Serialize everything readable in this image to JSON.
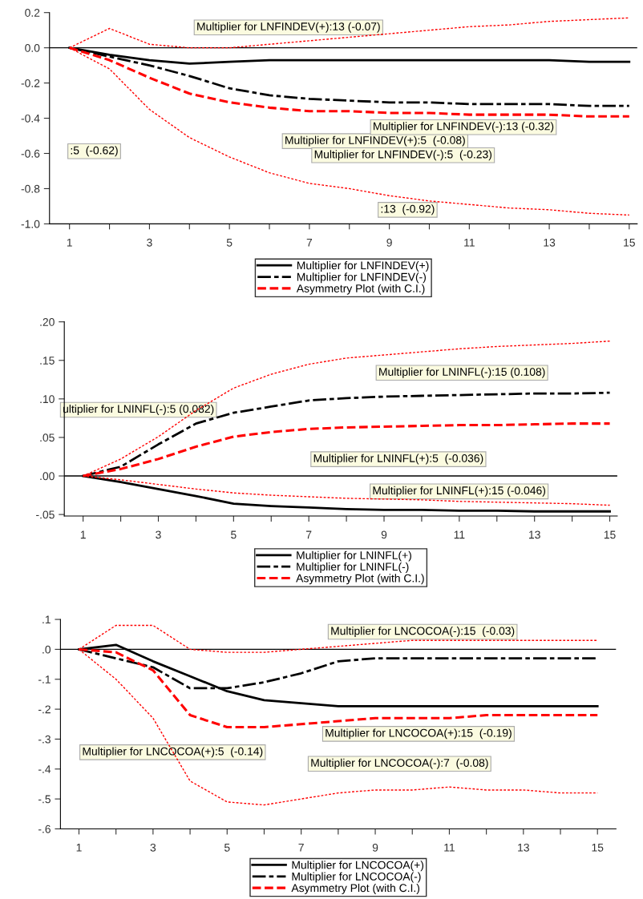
{
  "chart_data": [
    {
      "type": "line",
      "x": [
        1,
        2,
        3,
        4,
        5,
        6,
        7,
        8,
        9,
        10,
        11,
        12,
        13,
        14,
        15
      ],
      "xlim": [
        0.5,
        15.2
      ],
      "xticks": [
        1,
        {
          "value": 2,
          "label": null
        },
        3,
        {
          "value": 4,
          "label": null
        },
        5,
        {
          "value": 6,
          "label": null
        },
        7,
        {
          "value": 8,
          "label": null
        },
        9,
        {
          "value": 10,
          "label": null
        },
        11,
        {
          "value": 12,
          "label": null
        },
        13,
        {
          "value": 14,
          "label": null
        },
        15
      ],
      "ylim": [
        -1.0,
        0.2
      ],
      "yticks": [
        {
          "value": -1.0,
          "label": "-1.0"
        },
        {
          "value": -0.8,
          "label": "-0.8"
        },
        {
          "value": -0.6,
          "label": "-0.6"
        },
        {
          "value": -0.4,
          "label": "-0.4"
        },
        {
          "value": -0.2,
          "label": "-0.2"
        },
        {
          "value": 0.0,
          "label": "0.0"
        },
        {
          "value": 0.2,
          "label": "0.2"
        }
      ],
      "grid": false,
      "legend": "bottom",
      "ref_lines": [
        {
          "axis": "y",
          "value": 0,
          "color": "#000000",
          "line_style": "solid"
        }
      ],
      "series": [
        {
          "name": "Multiplier for LNFINDEV(+)",
          "color": "#000000",
          "line_style": "solid",
          "values": [
            0,
            -0.04,
            -0.07,
            -0.09,
            -0.08,
            -0.07,
            -0.07,
            -0.07,
            -0.07,
            -0.07,
            -0.07,
            -0.07,
            -0.07,
            -0.08,
            -0.08
          ]
        },
        {
          "name": "Multiplier for LNFINDEV(-)",
          "color": "#000000",
          "line_style": "dashed",
          "values": [
            0,
            -0.05,
            -0.1,
            -0.16,
            -0.23,
            -0.27,
            -0.29,
            -0.3,
            -0.31,
            -0.31,
            -0.32,
            -0.32,
            -0.32,
            -0.33,
            -0.33
          ]
        },
        {
          "name": "Asymmetry Plot (with C.I.)",
          "color": "#ff0000",
          "line_style": "dashed",
          "values": [
            0,
            -0.07,
            -0.17,
            -0.26,
            -0.31,
            -0.34,
            -0.36,
            -0.36,
            -0.37,
            -0.37,
            -0.38,
            -0.38,
            -0.38,
            -0.39,
            -0.39
          ]
        },
        {
          "color": "#ff0000",
          "line_style": "dotted",
          "values": [
            0,
            0.11,
            0.02,
            0.0,
            0.0,
            0.02,
            0.04,
            0.06,
            0.08,
            0.1,
            0.12,
            0.13,
            0.15,
            0.16,
            0.17
          ]
        },
        {
          "color": "#ff0000",
          "line_style": "dotted",
          "values": [
            0,
            -0.12,
            -0.35,
            -0.51,
            -0.62,
            -0.71,
            -0.77,
            -0.8,
            -0.84,
            -0.87,
            -0.89,
            -0.91,
            -0.92,
            -0.94,
            -0.95
          ]
        }
      ],
      "annotations": [
        "Multiplier for LNFINDEV(+):13 (-0.07)",
        "Multiplier for LNFINDEV(+):5  (-0.08)",
        "Multiplier for LNFINDEV(-):5  (-0.23)",
        "Multiplier for LNFINDEV(-):13 (-0.32)",
        ":5  (-0.62)",
        ":13  (-0.92)"
      ]
    },
    {
      "type": "line",
      "x": [
        1,
        2,
        3,
        4,
        5,
        6,
        7,
        8,
        9,
        10,
        11,
        12,
        13,
        14,
        15
      ],
      "xlim": [
        0.5,
        15.2
      ],
      "xticks": [
        1,
        {
          "value": 2,
          "label": null
        },
        3,
        {
          "value": 4,
          "label": null
        },
        5,
        {
          "value": 6,
          "label": null
        },
        7,
        {
          "value": 8,
          "label": null
        },
        9,
        {
          "value": 10,
          "label": null
        },
        11,
        {
          "value": 12,
          "label": null
        },
        13,
        {
          "value": 14,
          "label": null
        },
        15
      ],
      "ylim": [
        -0.052,
        0.2
      ],
      "yticks": [
        {
          "value": -0.05,
          "label": "-.05"
        },
        {
          "value": 0.0,
          "label": ".00"
        },
        {
          "value": 0.05,
          "label": ".05"
        },
        {
          "value": 0.1,
          "label": ".10"
        },
        {
          "value": 0.15,
          "label": ".15"
        },
        {
          "value": 0.2,
          "label": ".20"
        }
      ],
      "grid": false,
      "legend": "bottom",
      "ref_lines": [
        {
          "axis": "y",
          "value": 0,
          "color": "#000000",
          "line_style": "solid"
        }
      ],
      "series": [
        {
          "name": "Multiplier for LNINFL(+)",
          "color": "#000000",
          "line_style": "solid",
          "values": [
            0,
            -0.008,
            -0.017,
            -0.026,
            -0.036,
            -0.039,
            -0.041,
            -0.043,
            -0.044,
            -0.044,
            -0.045,
            -0.045,
            -0.046,
            -0.046,
            -0.046
          ]
        },
        {
          "name": "Multiplier for LNINFL(-)",
          "color": "#000000",
          "line_style": "dashed",
          "values": [
            0,
            0.012,
            0.041,
            0.068,
            0.082,
            0.09,
            0.098,
            0.101,
            0.103,
            0.104,
            0.105,
            0.106,
            0.107,
            0.107,
            0.108
          ]
        },
        {
          "name": "Asymmetry Plot (with C.I.)",
          "color": "#ff0000",
          "line_style": "dashed",
          "values": [
            0,
            0.009,
            0.022,
            0.038,
            0.051,
            0.057,
            0.061,
            0.063,
            0.064,
            0.065,
            0.066,
            0.066,
            0.067,
            0.068,
            0.068
          ]
        },
        {
          "color": "#ff0000",
          "line_style": "dotted",
          "values": [
            0,
            0.022,
            0.051,
            0.085,
            0.114,
            0.132,
            0.145,
            0.153,
            0.157,
            0.161,
            0.165,
            0.168,
            0.17,
            0.172,
            0.175
          ]
        },
        {
          "color": "#ff0000",
          "line_style": "dotted",
          "values": [
            0,
            -0.005,
            -0.011,
            -0.017,
            -0.022,
            -0.025,
            -0.027,
            -0.029,
            -0.03,
            -0.031,
            -0.033,
            -0.034,
            -0.035,
            -0.036,
            -0.038
          ]
        }
      ],
      "annotations": [
        "Multiplier for LNINFL(-):15 (0.108)",
        "ultiplier for LNINFL(-):5 (0.082)",
        "Multiplier for LNINFL(+):15 (-0.046)",
        "Multiplier for LNINFL(+):5  (-0.036)"
      ]
    },
    {
      "type": "line",
      "x": [
        1,
        2,
        3,
        4,
        5,
        6,
        7,
        8,
        9,
        10,
        11,
        12,
        13,
        14,
        15
      ],
      "xlim": [
        0.5,
        15.5
      ],
      "xticks": [
        1,
        {
          "value": 2,
          "label": null
        },
        3,
        {
          "value": 4,
          "label": null
        },
        5,
        {
          "value": 6,
          "label": null
        },
        7,
        {
          "value": 8,
          "label": null
        },
        9,
        {
          "value": 10,
          "label": null
        },
        11,
        {
          "value": 12,
          "label": null
        },
        13,
        {
          "value": 14,
          "label": null
        },
        15
      ],
      "ylim": [
        -0.6,
        0.1
      ],
      "yticks": [
        {
          "value": -0.6,
          "label": "-.6"
        },
        {
          "value": -0.5,
          "label": "-.5"
        },
        {
          "value": -0.4,
          "label": "-.4"
        },
        {
          "value": -0.3,
          "label": "-.3"
        },
        {
          "value": -0.2,
          "label": "-.2"
        },
        {
          "value": -0.1,
          "label": "-.1"
        },
        {
          "value": 0.0,
          "label": ".0"
        },
        {
          "value": 0.1,
          "label": ".1"
        }
      ],
      "grid": false,
      "legend": "bottom",
      "ref_lines": [
        {
          "axis": "y",
          "value": 0,
          "color": "#000000",
          "line_style": "solid"
        }
      ],
      "series": [
        {
          "name": "Multiplier for LNCOCOA(+)",
          "color": "#000000",
          "line_style": "solid",
          "values": [
            0,
            0.015,
            -0.04,
            -0.09,
            -0.14,
            -0.17,
            -0.18,
            -0.19,
            -0.19,
            -0.19,
            -0.19,
            -0.19,
            -0.19,
            -0.19,
            -0.19
          ]
        },
        {
          "name": "Multiplier for LNCOCOA(-)",
          "color": "#000000",
          "line_style": "dashed",
          "values": [
            0,
            -0.03,
            -0.06,
            -0.13,
            -0.13,
            -0.11,
            -0.08,
            -0.04,
            -0.03,
            -0.03,
            -0.03,
            -0.03,
            -0.03,
            -0.03,
            -0.03
          ]
        },
        {
          "name": "Asymmetry Plot (with C.I.)",
          "color": "#ff0000",
          "line_style": "dashed",
          "values": [
            0,
            -0.01,
            -0.07,
            -0.22,
            -0.26,
            -0.26,
            -0.25,
            -0.24,
            -0.23,
            -0.23,
            -0.23,
            -0.22,
            -0.22,
            -0.22,
            -0.22
          ]
        },
        {
          "color": "#ff0000",
          "line_style": "dotted",
          "values": [
            0,
            0.08,
            0.08,
            0.0,
            -0.01,
            -0.01,
            0.0,
            0.01,
            0.02,
            0.03,
            0.03,
            0.03,
            0.03,
            0.03,
            0.03
          ]
        },
        {
          "color": "#ff0000",
          "line_style": "dotted",
          "values": [
            0,
            -0.1,
            -0.23,
            -0.44,
            -0.51,
            -0.52,
            -0.5,
            -0.48,
            -0.47,
            -0.47,
            -0.46,
            -0.47,
            -0.47,
            -0.48,
            -0.48
          ]
        }
      ],
      "annotations": [
        "Multiplier for LNCOCOA(-):15  (-0.03)",
        "Multiplier for LNCOCOA(-):7  (-0.08)",
        "Multiplier for LNCOCOA(+):15  (-0.19)",
        "Multiplier for LNCOCOA(+):5  (-0.14)"
      ]
    }
  ]
}
